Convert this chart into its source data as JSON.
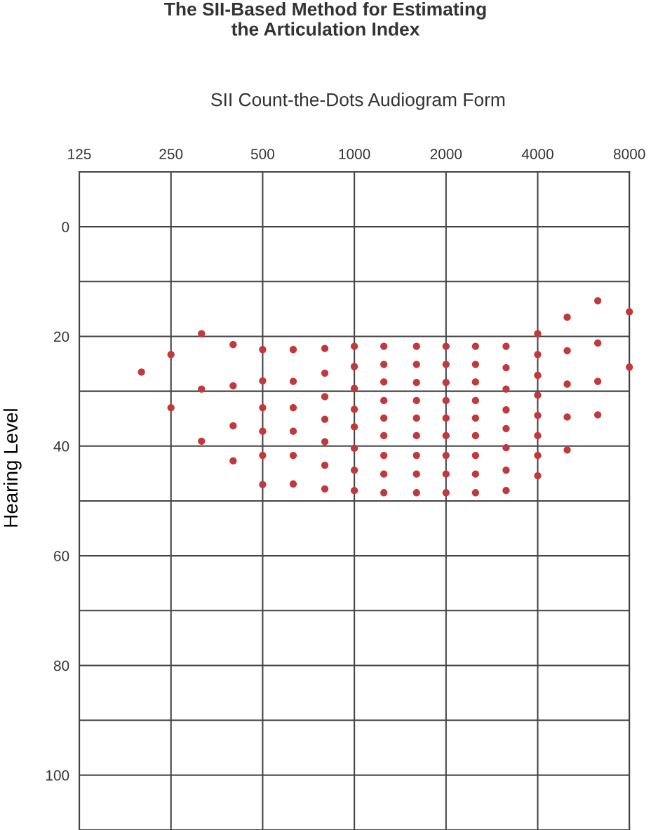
{
  "chart_data": {
    "type": "scatter",
    "title": "The SII-Based Method for Estimating\nthe Articulation Index",
    "subtitle": "SII Count-the-Dots Audiogram Form",
    "ylabel": "Hearing Level",
    "log": "x",
    "grid": true,
    "marker": "circle",
    "xlim": [
      125,
      8000
    ],
    "xticks": [
      125,
      250,
      500,
      1000,
      2000,
      4000,
      8000
    ],
    "ylim": [
      110,
      -10
    ],
    "yticks": [
      0,
      {
        "value": 10,
        "label": null
      },
      20,
      {
        "value": 30,
        "label": null
      },
      40,
      {
        "value": 50,
        "label": null
      },
      60,
      {
        "value": 70,
        "label": null
      },
      80,
      {
        "value": 90,
        "label": null
      },
      100
    ],
    "series": [
      {
        "color": "#c0393b",
        "x": [
          200,
          250,
          250,
          315,
          315,
          315,
          400,
          400,
          400,
          400,
          500,
          500,
          500,
          500,
          500,
          500,
          630,
          630,
          630,
          630,
          630,
          630,
          800,
          800,
          800,
          800,
          800,
          800,
          800,
          1000,
          1000,
          1000,
          1000,
          1000,
          1000,
          1000,
          1000,
          1250,
          1250,
          1250,
          1250,
          1250,
          1250,
          1250,
          1250,
          1250,
          1600,
          1600,
          1600,
          1600,
          1600,
          1600,
          1600,
          1600,
          1600,
          2000,
          2000,
          2000,
          2000,
          2000,
          2000,
          2000,
          2000,
          2000,
          2500,
          2500,
          2500,
          2500,
          2500,
          2500,
          2500,
          2500,
          2500,
          3150,
          3150,
          3150,
          3150,
          3150,
          3150,
          3150,
          3150,
          4000,
          4000,
          4000,
          4000,
          4000,
          4000,
          4000,
          4000,
          5000,
          5000,
          5000,
          5000,
          5000,
          6300,
          6300,
          6300,
          6300,
          8000,
          8000
        ],
        "values": [
          26.5,
          23.3,
          33,
          19.5,
          29.6,
          39.1,
          21.5,
          29,
          36.3,
          42.7,
          22.4,
          28.1,
          33,
          37.3,
          41.7,
          47,
          22.4,
          28.2,
          33,
          37.3,
          41.7,
          46.9,
          22.2,
          26.7,
          31,
          35.1,
          39.2,
          43.5,
          47.8,
          21.8,
          25.5,
          29.5,
          33.3,
          36.5,
          40.4,
          44.4,
          48.1,
          21.8,
          25.1,
          28.3,
          31.7,
          34.9,
          38.1,
          41.7,
          45.1,
          48.5,
          21.8,
          25.1,
          28.4,
          31.7,
          34.9,
          38.1,
          41.7,
          45.1,
          48.5,
          21.8,
          25.1,
          28.4,
          31.7,
          34.9,
          38.1,
          41.7,
          45.1,
          48.5,
          21.8,
          25.1,
          28.3,
          31.7,
          34.9,
          38.1,
          41.7,
          45.1,
          48.5,
          21.8,
          25.7,
          29.6,
          33.4,
          36.8,
          40.3,
          44.4,
          48.1,
          19.5,
          23.3,
          27.1,
          30.7,
          34.4,
          38.1,
          41.7,
          45.4,
          16.5,
          22.6,
          28.7,
          34.7,
          40.7,
          13.5,
          21.2,
          28.2,
          34.3,
          15.5,
          25.6
        ]
      }
    ]
  }
}
